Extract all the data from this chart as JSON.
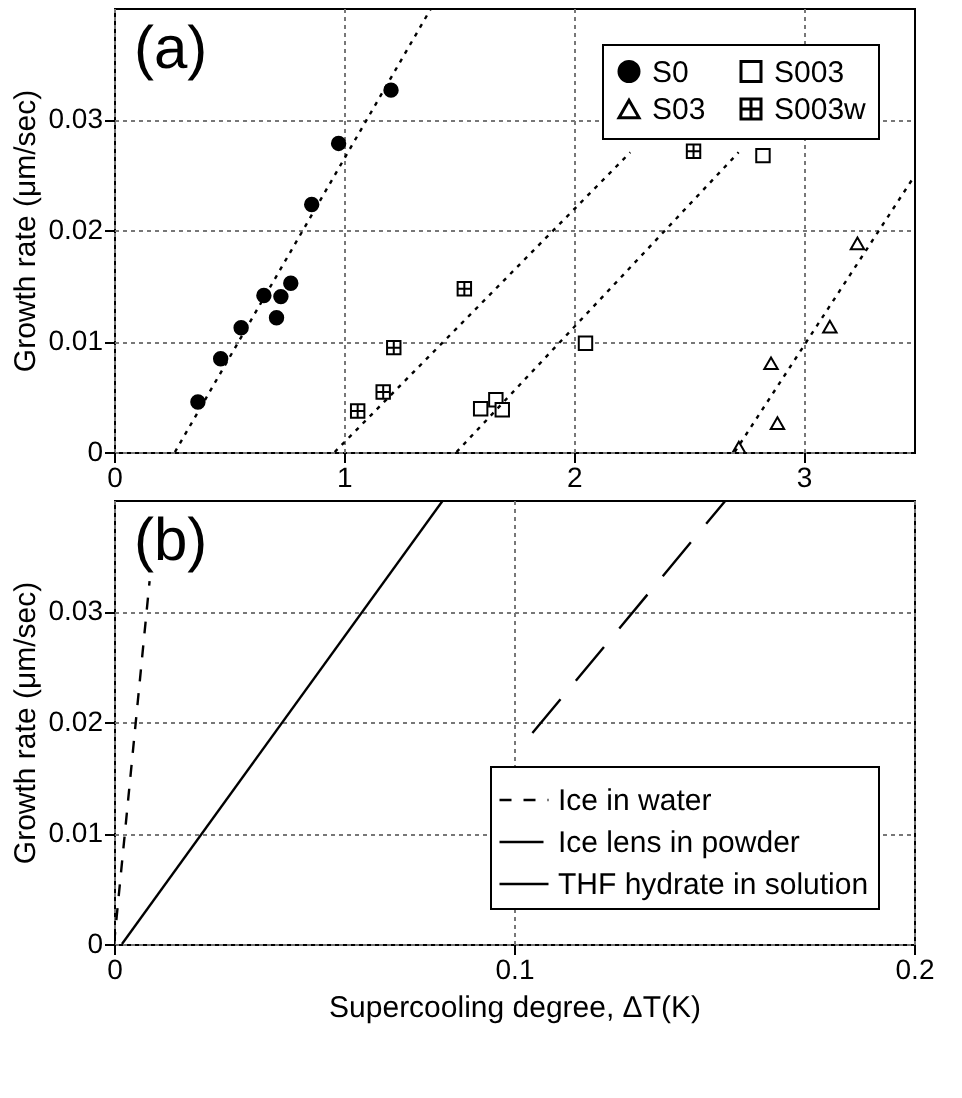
{
  "chart_data": [
    {
      "type": "scatter",
      "annotations": [
        "(a)"
      ],
      "ylabel": "Growth rate (μm/sec)",
      "xlim": [
        0,
        3.48
      ],
      "xticks": [
        0,
        1,
        2,
        3
      ],
      "ylim": [
        0,
        0.04
      ],
      "yticks": [
        0,
        0.01,
        0.02,
        0.03
      ],
      "grid": true,
      "legend": "top right",
      "series": [
        {
          "name": "S0",
          "color": "#000000",
          "marker": "circle",
          "x": [
            0.365,
            0.464,
            0.553,
            0.652,
            0.707,
            0.726,
            0.769,
            0.86,
            0.977,
            1.205
          ],
          "values": [
            0.0045,
            0.0084,
            0.0112,
            0.0141,
            0.0121,
            0.014,
            0.0152,
            0.0223,
            0.0278,
            0.0326
          ]
        },
        {
          "name": "S03",
          "color": "#000000",
          "marker": "triangle",
          "x": [
            2.718,
            2.858,
            2.886,
            3.114,
            3.234
          ],
          "values": [
            0.0004,
            0.008,
            0.0026,
            0.0113,
            0.0188
          ]
        },
        {
          "name": "S003",
          "color": "#000000",
          "marker": "square",
          "x": [
            1.595,
            1.661,
            1.689,
            2.051,
            2.823
          ],
          "values": [
            0.0039,
            0.0047,
            0.0038,
            0.0098,
            0.0267
          ]
        },
        {
          "name": "S003w",
          "color": "#000000",
          "marker": "cross",
          "x": [
            1.06,
            1.171,
            1.217,
            1.524,
            2.521
          ],
          "values": [
            0.0037,
            0.0054,
            0.0094,
            0.0147,
            0.0271
          ]
        },
        {
          "type": "line",
          "color": "#000000",
          "line_style": "dotted",
          "x": [
            0.265,
            1.38
          ],
          "values": [
            0,
            0.04
          ]
        },
        {
          "type": "line",
          "color": "#000000",
          "line_style": "dotted",
          "x": [
            0.96,
            2.246
          ],
          "values": [
            0,
            0.027
          ]
        },
        {
          "type": "line",
          "color": "#000000",
          "line_style": "dotted",
          "x": [
            1.49,
            2.717
          ],
          "values": [
            0,
            0.027
          ]
        },
        {
          "type": "line",
          "color": "#000000",
          "line_style": "dotted",
          "x": [
            2.7,
            3.48
          ],
          "values": [
            0,
            0.0248
          ]
        }
      ]
    },
    {
      "type": "line",
      "annotations": [
        "(b)"
      ],
      "xlabel": "Supercooling degree,   ΔT(K)",
      "ylabel": "Growth rate (μm/sec)",
      "xlim": [
        0,
        0.2
      ],
      "xticks": [
        0,
        0.1,
        0.2
      ],
      "ylim": [
        0,
        0.04
      ],
      "yticks": [
        0,
        0.01,
        0.02,
        0.03
      ],
      "grid": true,
      "legend": "bottom right",
      "series": [
        {
          "name": "Ice in water",
          "color": "#000000",
          "line_style": "dashed",
          "x": [
            0,
            0.0089
          ],
          "values": [
            0,
            0.0327
          ]
        },
        {
          "name": "Ice lens in powder",
          "color": "#000000",
          "line_style": "dashed",
          "x": [
            0.1046,
            0.153
          ],
          "values": [
            0.019,
            0.04
          ]
        },
        {
          "name": "THF hydrate in solution",
          "color": "#000000",
          "line_style": "solid",
          "x": [
            0.002,
            0.0823
          ],
          "values": [
            0,
            0.04
          ]
        }
      ]
    }
  ]
}
